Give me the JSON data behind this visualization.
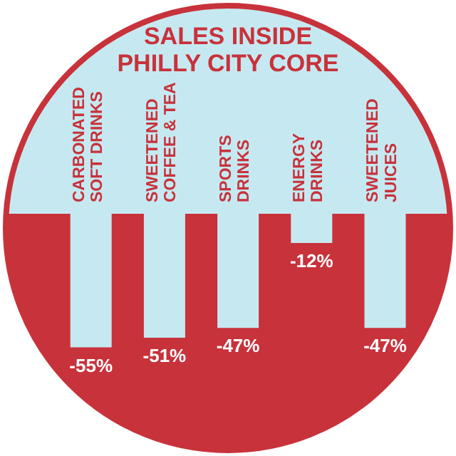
{
  "chart_data": {
    "type": "bar",
    "title": "SALES INSIDE PHILLY CITY CORE",
    "categories": [
      "CARBONATED SOFT DRINKS",
      "SWEETENED COFFEE & TEA",
      "SPORTS DRINKS",
      "ENERGY DRINKS",
      "SWEETENED JUICES"
    ],
    "values": [
      -55,
      -51,
      -47,
      -12,
      -47
    ],
    "value_labels": [
      "-55%",
      "-51%",
      "-47%",
      "-12%",
      "-47%"
    ],
    "color": "#c6e9f1"
  }
}
